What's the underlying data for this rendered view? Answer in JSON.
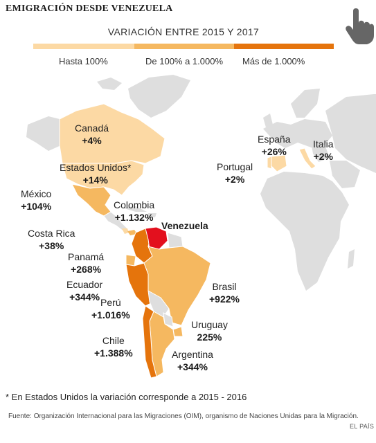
{
  "title": "EMIGRACIÓN DESDE VENEZUELA",
  "legend": {
    "title": "VARIACIÓN ENTRE 2015 Y 2017",
    "items": [
      {
        "label": "Hasta 100%",
        "color": "#fcd9a4"
      },
      {
        "label": "De 100% a 1.000%",
        "color": "#f5b860"
      },
      {
        "label": "Más de 1.000%",
        "color": "#e5740c"
      }
    ]
  },
  "colors": {
    "origin": "#e3101e",
    "no_data": "#dedede",
    "background": "#ffffff"
  },
  "highlight": {
    "name": "Venezuela"
  },
  "countries": [
    {
      "name": "Canadá",
      "value": "+4%",
      "category": "Hasta 100%"
    },
    {
      "name": "Estados Unidos*",
      "value": "+14%",
      "category": "Hasta 100%"
    },
    {
      "name": "México",
      "value": "+104%",
      "category": "De 100% a 1.000%"
    },
    {
      "name": "Colombia",
      "value": "+1.132%",
      "category": "Más de 1.000%"
    },
    {
      "name": "Costa Rica",
      "value": "+38%",
      "category": "Hasta 100%"
    },
    {
      "name": "Panamá",
      "value": "+268%",
      "category": "De 100% a 1.000%"
    },
    {
      "name": "Ecuador",
      "value": "+344%",
      "category": "De 100% a 1.000%"
    },
    {
      "name": "Perú",
      "value": "+1.016%",
      "category": "Más de 1.000%"
    },
    {
      "name": "Brasil",
      "value": "+922%",
      "category": "De 100% a 1.000%"
    },
    {
      "name": "Uruguay",
      "value": "225%",
      "category": "De 100% a 1.000%"
    },
    {
      "name": "Chile",
      "value": "+1.388%",
      "category": "Más de 1.000%"
    },
    {
      "name": "Argentina",
      "value": "+344%",
      "category": "De 100% a 1.000%"
    },
    {
      "name": "España",
      "value": "+26%",
      "category": "Hasta 100%"
    },
    {
      "name": "Italia",
      "value": "+2%",
      "category": "Hasta 100%"
    },
    {
      "name": "Portugal",
      "value": "+2%",
      "category": "Hasta 100%"
    }
  ],
  "footnote": "* En Estados Unidos la variación corresponde a 2015 - 2016",
  "source": "Fuente: Organización Internacional para las Migraciones (OIM), organismo de Naciones Unidas para la Migración.",
  "credit": "EL PAÍS"
}
